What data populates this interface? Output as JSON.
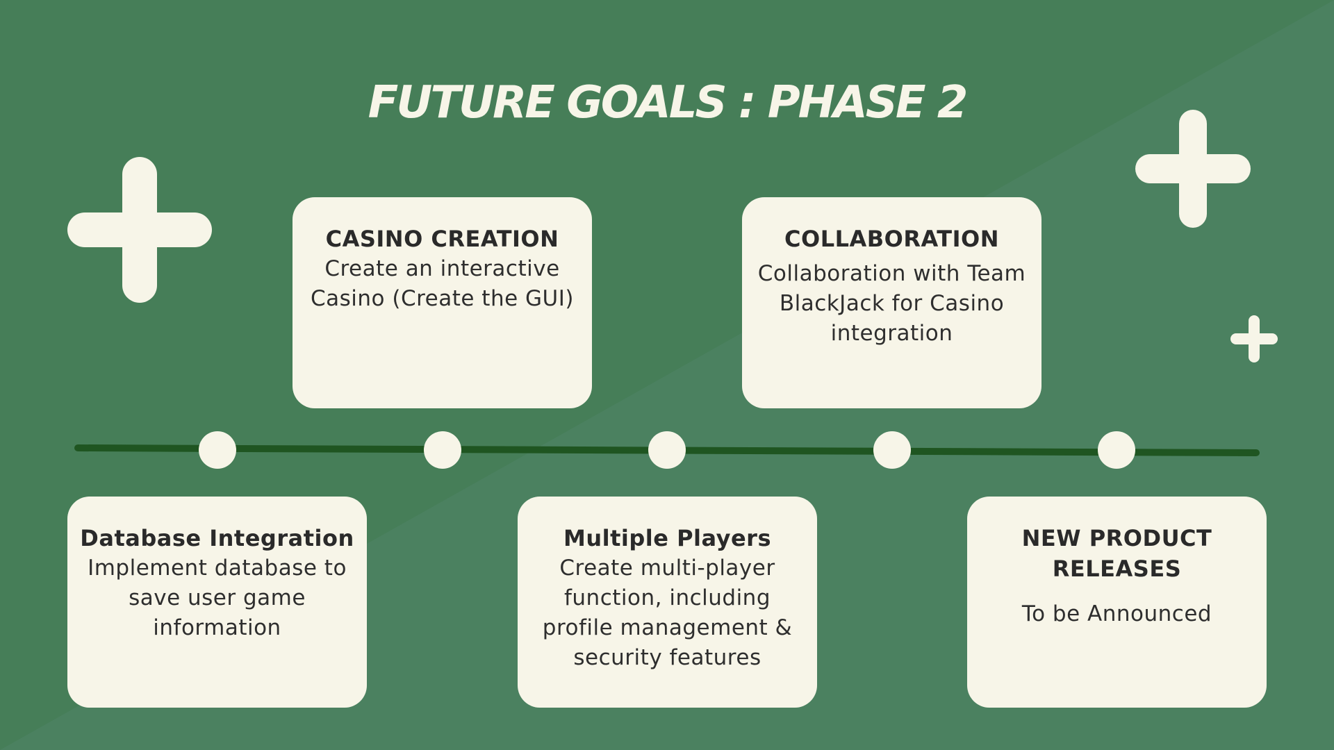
{
  "title": "FUTURE GOALS : PHASE 2",
  "colors": {
    "background": "#467e58",
    "background_light": "#4b8160",
    "card": "#f7f5e8",
    "timeline": "#1f5521",
    "text": "#2a2a2a"
  },
  "icons": [
    "plus-icon",
    "plus-icon",
    "plus-icon"
  ],
  "milestones": [
    {
      "title": "Database Integration",
      "text": "Implement database to save user game information"
    },
    {
      "title": "CASINO CREATION",
      "text": "Create an interactive Casino (Create the GUI)"
    },
    {
      "title": "Multiple Players",
      "text": "Create multi-player function, including profile management & security features"
    },
    {
      "title": "COLLABORATION",
      "text": "Collaboration with Team BlackJack for Casino integration"
    },
    {
      "title": "NEW PRODUCT RELEASES",
      "text": "To be Announced"
    }
  ]
}
